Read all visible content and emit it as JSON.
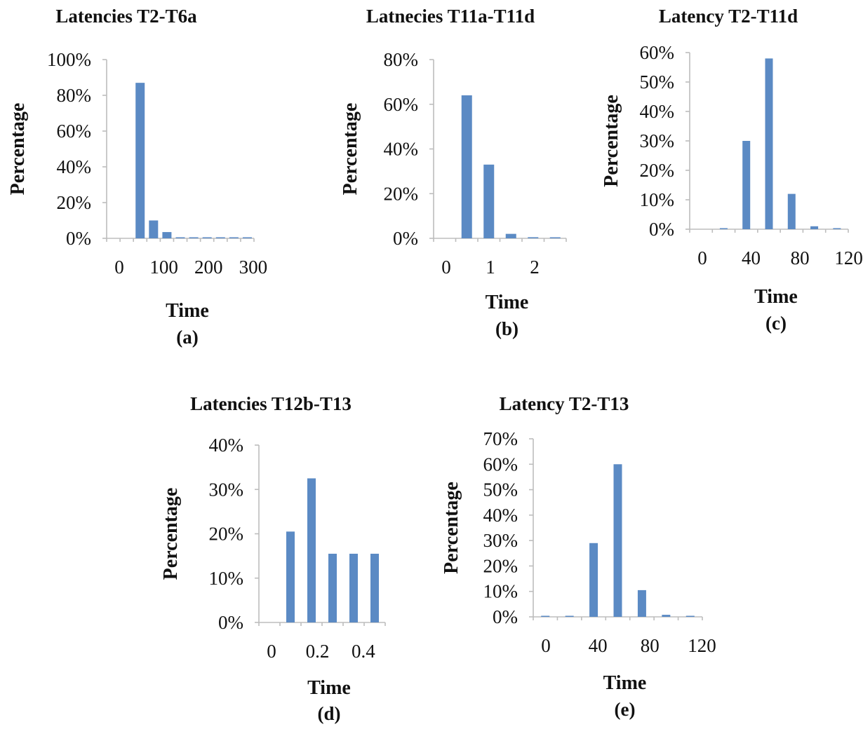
{
  "chart_data": [
    {
      "id": "a",
      "type": "bar",
      "title": "Latencies T2-T6a",
      "xlabel": "Time",
      "ylabel": "Percentage",
      "caption": "(a)",
      "xlim": [
        0,
        330
      ],
      "ylim": [
        0,
        100
      ],
      "x_ticks": [
        "0",
        "100",
        "200",
        "300"
      ],
      "y_ticks": [
        "0%",
        "20%",
        "40%",
        "60%",
        "80%",
        "100%"
      ],
      "x": [
        15,
        45,
        75,
        105,
        135,
        165,
        195,
        225,
        255,
        285,
        315
      ],
      "values": [
        0,
        0,
        87,
        10,
        3.5,
        0.5,
        0.3,
        0.2,
        0.2,
        0.1,
        0.1
      ]
    },
    {
      "id": "b",
      "type": "bar",
      "title": "Latnecies T11a-T11d",
      "xlabel": "Time",
      "ylabel": "Percentage",
      "caption": "(b)",
      "xlim": [
        0,
        3
      ],
      "ylim": [
        0,
        80
      ],
      "x_ticks": [
        "0",
        "1",
        "2"
      ],
      "y_ticks": [
        "0%",
        "20%",
        "40%",
        "60%",
        "80%"
      ],
      "x": [
        0.25,
        0.75,
        1.25,
        1.75,
        2.25,
        2.75
      ],
      "values": [
        0,
        64,
        33,
        2,
        0.5,
        0.3
      ]
    },
    {
      "id": "c",
      "type": "bar",
      "title": "Latency T2-T11d",
      "xlabel": "Time",
      "ylabel": "Percentage",
      "caption": "(c)",
      "xlim": [
        0,
        130
      ],
      "ylim": [
        0,
        60
      ],
      "x_ticks": [
        "0",
        "40",
        "80",
        "120"
      ],
      "y_ticks": [
        "0%",
        "10%",
        "20%",
        "30%",
        "40%",
        "50%",
        "60%"
      ],
      "x": [
        0,
        20,
        40,
        60,
        80,
        100,
        120
      ],
      "values": [
        0,
        0.3,
        30,
        58,
        12,
        1,
        0.3
      ]
    },
    {
      "id": "d",
      "type": "bar",
      "title": "Latencies T12b-T13",
      "xlabel": "Time",
      "ylabel": "Percentage",
      "caption": "(d)",
      "xlim": [
        0,
        0.55
      ],
      "ylim": [
        0,
        40
      ],
      "x_ticks": [
        "0",
        "0.2",
        "0.4"
      ],
      "y_ticks": [
        "0%",
        "10%",
        "20%",
        "30%",
        "40%"
      ],
      "x": [
        0,
        0.1,
        0.2,
        0.3,
        0.4,
        0.5
      ],
      "values": [
        0,
        20.5,
        32.5,
        15.5,
        15.5,
        15.5
      ]
    },
    {
      "id": "e",
      "type": "bar",
      "title": "Latency T2-T13",
      "xlabel": "Time",
      "ylabel": "Percentage",
      "caption": "(e)",
      "xlim": [
        0,
        130
      ],
      "ylim": [
        0,
        70
      ],
      "x_ticks": [
        "0",
        "40",
        "80",
        "120"
      ],
      "y_ticks": [
        "0%",
        "10%",
        "20%",
        "30%",
        "40%",
        "50%",
        "60%",
        "70%"
      ],
      "x": [
        0,
        20,
        40,
        60,
        80,
        100,
        120
      ],
      "values": [
        0.3,
        0.3,
        29,
        60,
        10.5,
        0.8,
        0.2
      ]
    }
  ]
}
